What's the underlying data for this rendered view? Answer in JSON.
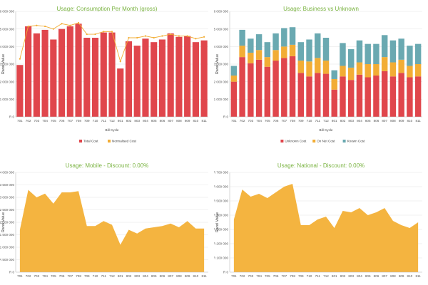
{
  "colors": {
    "title": "#7ab341",
    "red": "#e0464c",
    "orange": "#f2ad35",
    "teal": "#6aa9b1",
    "area": "#f4b440"
  },
  "chart_data": [
    {
      "type": "bar",
      "title": "Usage: Consumption Per Month (gross)",
      "xlabel": "Bill Cycle",
      "ylabel": "Rand Value",
      "ylim": [
        0,
        6000000
      ],
      "yticks": [
        0,
        1000000,
        2000000,
        3000000,
        4000000,
        5000000,
        6000000
      ],
      "ytick_labels": [
        "R 0",
        "R 1 000 000",
        "R 2 000 000",
        "R 3 000 000",
        "R 4 000 000",
        "R 5 000 000",
        "R 6 000 000"
      ],
      "categories": [
        "701",
        "702",
        "703",
        "704",
        "705",
        "706",
        "707",
        "708",
        "709",
        "710",
        "711",
        "712",
        "801",
        "802",
        "803",
        "804",
        "805",
        "806",
        "807",
        "808",
        "809",
        "810",
        "811"
      ],
      "series": [
        {
          "name": "Total Cost",
          "kind": "bar",
          "color": "#e0464c",
          "values": [
            2950000,
            5150000,
            4750000,
            4950000,
            4400000,
            5000000,
            5150000,
            5300000,
            4500000,
            4500000,
            4800000,
            4800000,
            2750000,
            4300000,
            4050000,
            4450000,
            4250000,
            4400000,
            4750000,
            4550000,
            4600000,
            4250000,
            4350000
          ]
        },
        {
          "name": "Normalised Cost",
          "kind": "line",
          "color": "#f2ad35",
          "values": [
            3300000,
            5150000,
            5200000,
            5150000,
            5000000,
            5300000,
            5200000,
            5350000,
            4700000,
            4700000,
            4850000,
            4850000,
            3150000,
            4500000,
            4500000,
            4600000,
            4500000,
            4600000,
            4700000,
            4600000,
            4600000,
            4450000,
            4550000
          ]
        }
      ],
      "legend": "bottom-center",
      "grid": true
    },
    {
      "type": "bar",
      "stacked": true,
      "title": "Usage: Business vs Unknown",
      "xlabel": "Bill Cycle",
      "ylabel": "Rand Value",
      "ylim": [
        0,
        6000000
      ],
      "yticks": [
        0,
        1000000,
        2000000,
        3000000,
        4000000,
        5000000,
        6000000
      ],
      "ytick_labels": [
        "R 0",
        "R 1 000 000",
        "R 2 000 000",
        "R 3 000 000",
        "R 4 000 000",
        "R 5 000 000",
        "R 6 000 000"
      ],
      "categories": [
        "701",
        "702",
        "703",
        "704",
        "705",
        "706",
        "707",
        "708",
        "709",
        "710",
        "711",
        "712",
        "801",
        "802",
        "803",
        "804",
        "805",
        "806",
        "807",
        "808",
        "809",
        "810",
        "811"
      ],
      "series": [
        {
          "name": "Unknown Cost",
          "color": "#e0464c",
          "values": [
            2000000,
            3400000,
            3050000,
            3250000,
            2850000,
            3200000,
            3350000,
            3450000,
            2500000,
            2300000,
            2500000,
            2450000,
            1550000,
            2300000,
            2100000,
            2400000,
            2250000,
            2350000,
            2600000,
            2300000,
            2500000,
            2250000,
            2300000
          ]
        },
        {
          "name": "On Net Cost",
          "color": "#f2ad35",
          "values": [
            350000,
            650000,
            600000,
            550000,
            550000,
            600000,
            650000,
            650000,
            700000,
            850000,
            850000,
            750000,
            600000,
            600000,
            700000,
            700000,
            750000,
            650000,
            800000,
            800000,
            750000,
            650000,
            700000
          ]
        },
        {
          "name": "Known Cost",
          "color": "#6aa9b1",
          "values": [
            550000,
            900000,
            800000,
            900000,
            850000,
            950000,
            1050000,
            1000000,
            1050000,
            1250000,
            1400000,
            1300000,
            500000,
            1300000,
            1050000,
            1250000,
            1150000,
            1150000,
            1250000,
            1250000,
            1200000,
            1150000,
            1150000
          ]
        }
      ],
      "legend": "bottom-center",
      "grid": true
    },
    {
      "type": "area",
      "title": "Usage: Mobile - Discount: 0.00%",
      "xlabel": "",
      "ylabel": "Rand Value",
      "ylim": [
        0,
        4000000
      ],
      "yticks": [
        0,
        500000,
        1000000,
        1500000,
        2000000,
        2500000,
        3000000,
        3500000,
        4000000
      ],
      "ytick_labels": [
        "R 0",
        "R 500 000",
        "R 1 000 000",
        "R 1 500 000",
        "R 2 000 000",
        "R 2 500 000",
        "R 3 000 000",
        "R 3 500 000",
        "R 4 000 000"
      ],
      "categories": [
        "701",
        "702",
        "703",
        "704",
        "705",
        "706",
        "707",
        "708",
        "709",
        "710",
        "711",
        "712",
        "801",
        "802",
        "803",
        "804",
        "805",
        "806",
        "807",
        "808",
        "809",
        "810",
        "811"
      ],
      "series": [
        {
          "name": "",
          "color": "#f4b440",
          "values": [
            1700000,
            3300000,
            3000000,
            3150000,
            2750000,
            3200000,
            3200000,
            3250000,
            1850000,
            1850000,
            2050000,
            1900000,
            1100000,
            1700000,
            1550000,
            1750000,
            1800000,
            1850000,
            1950000,
            1800000,
            2050000,
            1750000,
            1750000
          ]
        }
      ],
      "grid": true
    },
    {
      "type": "area",
      "title": "Usage: National - Discount: 0.00%",
      "xlabel": "",
      "ylabel": "Rand Value",
      "ylim": [
        0,
        700000
      ],
      "yticks": [
        0,
        100000,
        200000,
        300000,
        400000,
        500000,
        600000,
        700000
      ],
      "ytick_labels": [
        "R 0",
        "R 100 000",
        "R 200 000",
        "R 300 000",
        "R 400 000",
        "R 500 000",
        "R 600 000",
        "R 700 000"
      ],
      "categories": [
        "701",
        "702",
        "703",
        "704",
        "705",
        "706",
        "707",
        "708",
        "709",
        "710",
        "711",
        "712",
        "801",
        "802",
        "803",
        "804",
        "805",
        "806",
        "807",
        "808",
        "809",
        "810",
        "811"
      ],
      "series": [
        {
          "name": "",
          "color": "#f4b440",
          "values": [
            370000,
            580000,
            530000,
            550000,
            520000,
            560000,
            600000,
            620000,
            330000,
            330000,
            370000,
            390000,
            310000,
            430000,
            420000,
            450000,
            400000,
            420000,
            450000,
            360000,
            330000,
            310000,
            350000
          ]
        }
      ],
      "grid": true
    }
  ]
}
